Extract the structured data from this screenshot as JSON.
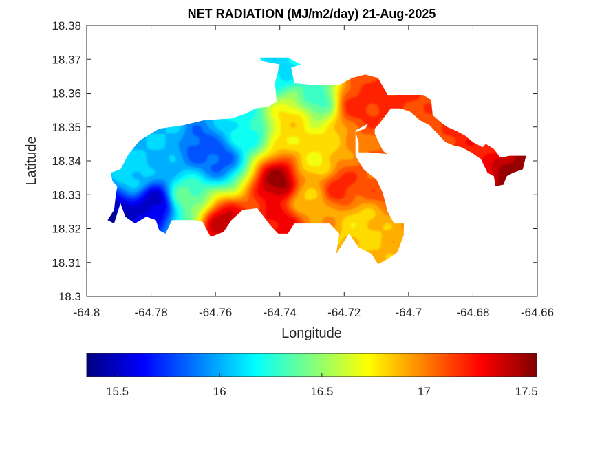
{
  "chart_data": {
    "type": "heatmap",
    "title": "NET RADIATION (MJ/m2/day) 21-Aug-2025",
    "xlabel": "Longitude",
    "ylabel": "Latitude",
    "xlim": [
      -64.8,
      -64.66
    ],
    "ylim": [
      18.3,
      18.38
    ],
    "x_ticks": [
      -64.8,
      -64.78,
      -64.76,
      -64.74,
      -64.72,
      -64.7,
      -64.68,
      -64.66
    ],
    "x_tick_labels": [
      "-64.8",
      "-64.78",
      "-64.76",
      "-64.74",
      "-64.72",
      "-64.7",
      "-64.68",
      "-64.66"
    ],
    "y_ticks": [
      18.3,
      18.31,
      18.32,
      18.33,
      18.34,
      18.35,
      18.36,
      18.37,
      18.38
    ],
    "y_tick_labels": [
      "18.3",
      "18.31",
      "18.32",
      "18.33",
      "18.34",
      "18.35",
      "18.36",
      "18.37",
      "18.38"
    ],
    "grid": false,
    "colormap": "jet",
    "colorbar": {
      "orientation": "horizontal",
      "placement": "bottom",
      "range": [
        15.35,
        17.55
      ],
      "ticks": [
        15.5,
        16,
        16.5,
        17,
        17.5
      ],
      "tick_labels": [
        "15.5",
        "16",
        "16.5",
        "17",
        "17.5"
      ]
    },
    "field_centers": [
      {
        "lon": -64.779,
        "lat": 18.3275,
        "value": 15.5
      },
      {
        "lon": -64.7655,
        "lat": 18.3445,
        "value": 15.8
      },
      {
        "lon": -64.759,
        "lat": 18.341,
        "value": 15.8
      },
      {
        "lon": -64.7915,
        "lat": 18.3232,
        "value": 15.4
      },
      {
        "lon": -64.775,
        "lat": 18.347,
        "value": 16.05
      },
      {
        "lon": -64.7855,
        "lat": 18.336,
        "value": 16.1
      },
      {
        "lon": -64.7285,
        "lat": 18.3585,
        "value": 16.3
      },
      {
        "lon": -64.751,
        "lat": 18.349,
        "value": 16.2
      },
      {
        "lon": -64.7395,
        "lat": 18.368,
        "value": 16.1
      },
      {
        "lon": -64.769,
        "lat": 18.329,
        "value": 16.4
      },
      {
        "lon": -64.7285,
        "lat": 18.3395,
        "value": 16.75
      },
      {
        "lon": -64.7365,
        "lat": 18.3515,
        "value": 16.8
      },
      {
        "lon": -64.7155,
        "lat": 18.3215,
        "value": 16.8
      },
      {
        "lon": -64.7315,
        "lat": 18.3285,
        "value": 16.85
      },
      {
        "lon": -64.716,
        "lat": 18.357,
        "value": 17.2
      },
      {
        "lon": -64.7405,
        "lat": 18.334,
        "value": 17.5
      },
      {
        "lon": -64.7575,
        "lat": 18.3215,
        "value": 17.4
      },
      {
        "lon": -64.7395,
        "lat": 18.3215,
        "value": 17.3
      },
      {
        "lon": -64.7215,
        "lat": 18.3325,
        "value": 17.2
      },
      {
        "lon": -64.7075,
        "lat": 18.36,
        "value": 17.2
      },
      {
        "lon": -64.6665,
        "lat": 18.3375,
        "value": 17.5
      },
      {
        "lon": -64.6755,
        "lat": 18.346,
        "value": 17.2
      },
      {
        "lon": -64.7095,
        "lat": 18.3335,
        "value": 17.1
      }
    ],
    "land_outline": [
      [
        -64.7925,
        18.3365
      ],
      [
        -64.7895,
        18.3375
      ],
      [
        -64.787,
        18.342
      ],
      [
        -64.7835,
        18.346
      ],
      [
        -64.7775,
        18.3495
      ],
      [
        -64.77,
        18.3505
      ],
      [
        -64.7635,
        18.352
      ],
      [
        -64.755,
        18.3525
      ],
      [
        -64.7505,
        18.354
      ],
      [
        -64.7475,
        18.3555
      ],
      [
        -64.7435,
        18.356
      ],
      [
        -64.741,
        18.3575
      ],
      [
        -64.7415,
        18.363
      ],
      [
        -64.74,
        18.3685
      ],
      [
        -64.7455,
        18.3695
      ],
      [
        -64.7465,
        18.3705
      ],
      [
        -64.7375,
        18.3705
      ],
      [
        -64.7335,
        18.3685
      ],
      [
        -64.7365,
        18.3675
      ],
      [
        -64.7355,
        18.363
      ],
      [
        -64.7305,
        18.3625
      ],
      [
        -64.7215,
        18.3625
      ],
      [
        -64.7175,
        18.3645
      ],
      [
        -64.7135,
        18.3655
      ],
      [
        -64.7095,
        18.3645
      ],
      [
        -64.7065,
        18.3595
      ],
      [
        -64.7015,
        18.3595
      ],
      [
        -64.6955,
        18.3595
      ],
      [
        -64.693,
        18.358
      ],
      [
        -64.6925,
        18.3535
      ],
      [
        -64.6895,
        18.351
      ],
      [
        -64.688,
        18.35
      ],
      [
        -64.6855,
        18.349
      ],
      [
        -64.6825,
        18.3475
      ],
      [
        -64.68,
        18.3455
      ],
      [
        -64.677,
        18.344
      ],
      [
        -64.676,
        18.345
      ],
      [
        -64.6735,
        18.3435
      ],
      [
        -64.6715,
        18.341
      ],
      [
        -64.6685,
        18.3415
      ],
      [
        -64.6635,
        18.3415
      ],
      [
        -64.6645,
        18.3375
      ],
      [
        -64.6675,
        18.3365
      ],
      [
        -64.6695,
        18.3355
      ],
      [
        -64.6705,
        18.333
      ],
      [
        -64.673,
        18.3325
      ],
      [
        -64.6735,
        18.3355
      ],
      [
        -64.6755,
        18.3365
      ],
      [
        -64.6775,
        18.3405
      ],
      [
        -64.6805,
        18.3425
      ],
      [
        -64.6835,
        18.344
      ],
      [
        -64.686,
        18.3445
      ],
      [
        -64.6885,
        18.3455
      ],
      [
        -64.6905,
        18.3475
      ],
      [
        -64.6935,
        18.3505
      ],
      [
        -64.6965,
        18.352
      ],
      [
        -64.6995,
        18.3545
      ],
      [
        -64.7025,
        18.3555
      ],
      [
        -64.7055,
        18.3555
      ],
      [
        -64.7075,
        18.353
      ],
      [
        -64.709,
        18.351
      ],
      [
        -64.7105,
        18.3495
      ],
      [
        -64.7105,
        18.348
      ],
      [
        -64.708,
        18.343
      ],
      [
        -64.7065,
        18.342
      ],
      [
        -64.7125,
        18.3425
      ],
      [
        -64.7155,
        18.3425
      ],
      [
        -64.7155,
        18.3455
      ],
      [
        -64.7165,
        18.3485
      ],
      [
        -64.7135,
        18.3495
      ],
      [
        -64.7125,
        18.351
      ],
      [
        -64.7165,
        18.349
      ],
      [
        -64.7165,
        18.3445
      ],
      [
        -64.7165,
        18.3415
      ],
      [
        -64.714,
        18.3375
      ],
      [
        -64.71,
        18.3345
      ],
      [
        -64.708,
        18.3305
      ],
      [
        -64.7065,
        18.325
      ],
      [
        -64.7045,
        18.3215
      ],
      [
        -64.7015,
        18.3215
      ],
      [
        -64.7015,
        18.318
      ],
      [
        -64.7035,
        18.313
      ],
      [
        -64.7065,
        18.311
      ],
      [
        -64.7095,
        18.3095
      ],
      [
        -64.7115,
        18.3125
      ],
      [
        -64.7155,
        18.3145
      ],
      [
        -64.7185,
        18.3185
      ],
      [
        -64.7225,
        18.3125
      ],
      [
        -64.7215,
        18.3185
      ],
      [
        -64.7245,
        18.3215
      ],
      [
        -64.73,
        18.3215
      ],
      [
        -64.7355,
        18.3215
      ],
      [
        -64.7375,
        18.3185
      ],
      [
        -64.7405,
        18.3185
      ],
      [
        -64.743,
        18.321
      ],
      [
        -64.747,
        18.326
      ],
      [
        -64.7515,
        18.3255
      ],
      [
        -64.755,
        18.3225
      ],
      [
        -64.7575,
        18.319
      ],
      [
        -64.7615,
        18.3175
      ],
      [
        -64.764,
        18.322
      ],
      [
        -64.7665,
        18.3225
      ],
      [
        -64.7735,
        18.3225
      ],
      [
        -64.7755,
        18.3185
      ],
      [
        -64.7775,
        18.3195
      ],
      [
        -64.7785,
        18.3225
      ],
      [
        -64.7815,
        18.3235
      ],
      [
        -64.785,
        18.3215
      ],
      [
        -64.788,
        18.3235
      ],
      [
        -64.7895,
        18.3275
      ],
      [
        -64.7915,
        18.3215
      ],
      [
        -64.7935,
        18.3225
      ],
      [
        -64.7915,
        18.3255
      ],
      [
        -64.791,
        18.3295
      ],
      [
        -64.7905,
        18.3325
      ],
      [
        -64.792,
        18.334
      ]
    ]
  }
}
